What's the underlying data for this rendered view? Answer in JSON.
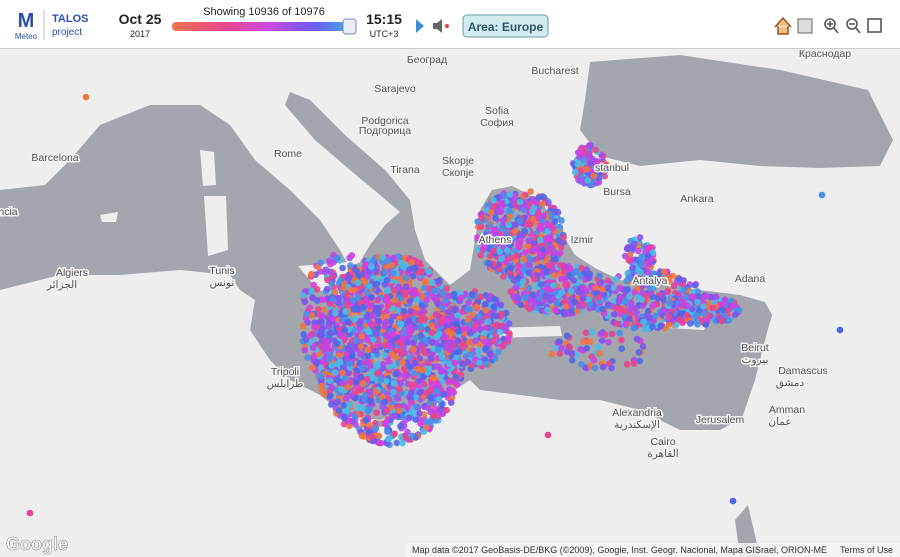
{
  "header": {
    "logo_mark": "M",
    "logo_sub": "Meteo",
    "app_name": "TALOS",
    "app_sub": "project",
    "date": "Oct 25",
    "year": "2017",
    "showing": "Showing 10936 of 10976",
    "time": "15:15",
    "timezone": "UTC+3",
    "area_button": "Area: Europe"
  },
  "map": {
    "labels": [
      "Краснодар",
      "Bucharest",
      "Београд",
      "Sarajevo",
      "Sofia",
      "София",
      "Podgorica",
      "Подгорица",
      "Rome",
      "Tirana",
      "Skopje",
      "Скопје",
      "Barcelona",
      "ncia",
      "stanbul",
      "Bursa",
      "Ankara",
      "Izmir",
      "Athens",
      "Antalya",
      "Adana",
      "Algiers",
      "الجزائر",
      "Tunis",
      "تونس",
      "Tripoli",
      "طرابلس",
      "Beirut",
      "بيروت",
      "Damascus",
      "دمشق",
      "Alexandria",
      "الإسكندرية",
      "Cairo",
      "القاهرة",
      "Jerusalem",
      "Amman",
      "عمان"
    ]
  },
  "footer": {
    "brand": "Google",
    "attribution": "Map data ©2017 GeoBasis-DE/BKG (©2009), Google, Inst. Geogr. Nacional, Mapa GISrael, ORION-ME",
    "terms": "Terms of Use"
  }
}
